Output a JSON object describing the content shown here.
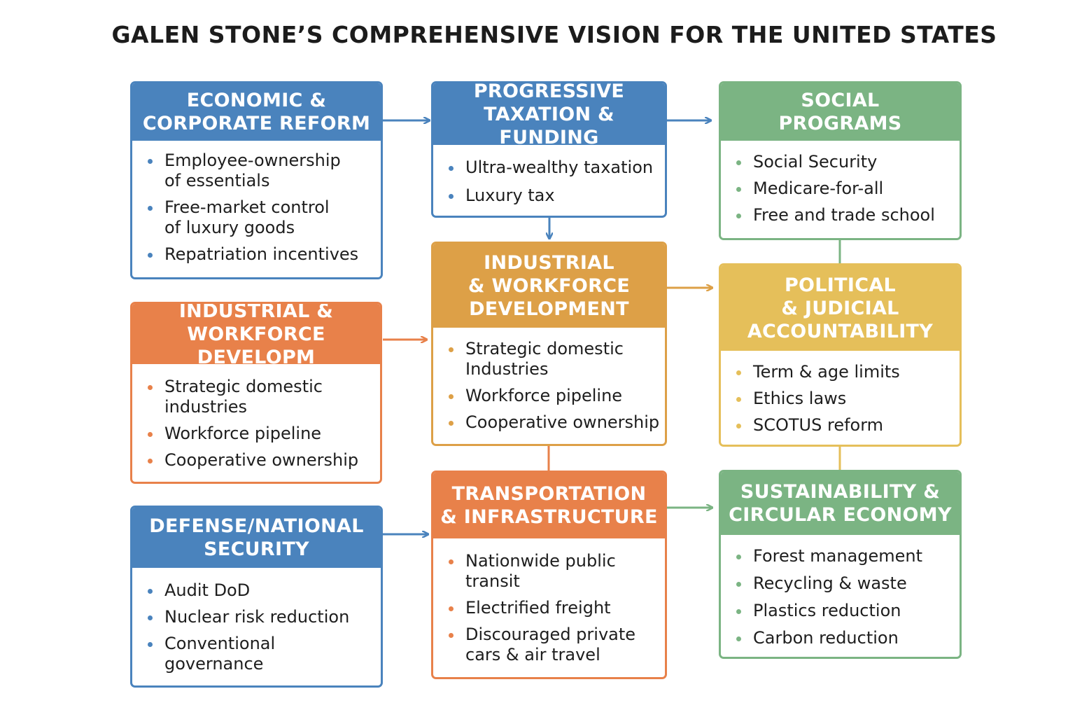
{
  "title": "GALEN STONE’S COMPREHENSIVE VISION FOR THE UNITED STATES",
  "colors": {
    "blue": "#4a83bd",
    "green": "#7bb483",
    "orange": "#e8814a",
    "gold": "#dda047",
    "yellow": "#e5bf5a"
  },
  "boxes": [
    {
      "title": "ECONOMIC &\nCORPORATE REFORM",
      "items": [
        "Employee-ownership\nof essentials",
        "Free-market control\nof luxury goods",
        "Repatriation incentives"
      ]
    },
    {
      "title": "PROGRESSIVE\nTAXATION & FUNDING",
      "items": [
        "Ultra-wealthy taxation",
        "Luxury tax"
      ]
    },
    {
      "title": "SOCIAL\nPROGRAMS",
      "items": [
        "Social Security",
        "Medicare-for-all",
        "Free and trade school"
      ]
    },
    {
      "title": "INDUSTRIAL &\nWORKFORCE DEVELOPM",
      "items": [
        "Strategic domestic\nindustries",
        "Workforce pipeline",
        "Cooperative ownership"
      ]
    },
    {
      "title": "INDUSTRIAL\n& WORKFORCE\nDEVELOPMENT",
      "items": [
        "Strategic domestic\nIndustries",
        "Workforce pipeline",
        "Cooperative ownership"
      ]
    },
    {
      "title": "POLITICAL\n& JUDICIAL\nACCOUNTABILITY",
      "items": [
        "Term & age limits",
        "Ethics laws",
        "SCOTUS reform"
      ]
    },
    {
      "title": "DEFENSE/NATIONAL\nSECURITY",
      "items": [
        "Audit DoD",
        "Nuclear risk reduction",
        "Conventional\ngovernance"
      ]
    },
    {
      "title": "TRANSPORTATION\n& INFRASTRUCTURE",
      "items": [
        "Nationwide public\ntransit",
        "Electrified freight",
        "Discouraged private\ncars & air travel"
      ]
    },
    {
      "title": "SUSTAINABILITY &\nCIRCULAR ECONOMY",
      "items": [
        "Forest management",
        "Recycling & waste",
        "Plastics reduction",
        "Carbon reduction"
      ]
    }
  ]
}
